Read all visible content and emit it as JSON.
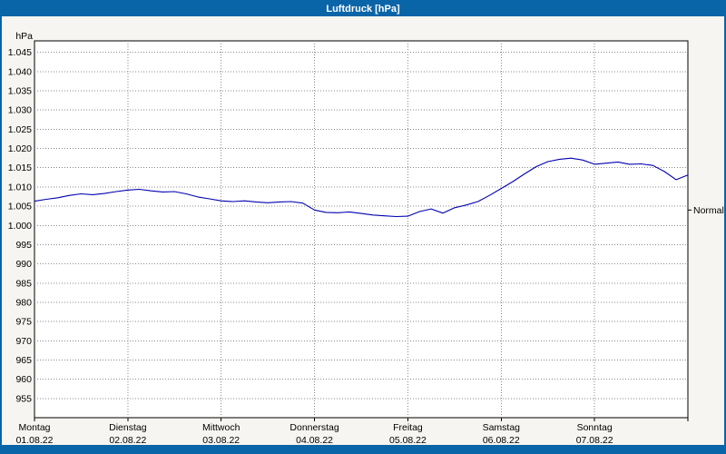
{
  "window": {
    "title": "Luftdruck [hPa]"
  },
  "colors": {
    "titlebar": "#0a64a8",
    "border": "#0a64a8",
    "background": "#f6f5f1",
    "plot_bg": "#ffffff",
    "grid": "#8a8a8a",
    "line": "#0000b0"
  },
  "chart_data": {
    "type": "line",
    "title": "Luftdruck [hPa]",
    "ylabel": "hPa",
    "series_name": "Luftdruck",
    "ylim": [
      950,
      1048
    ],
    "x_range": [
      0,
      7
    ],
    "x_unit": "days",
    "grid": "dotted",
    "legend": "none",
    "y_tick_values": [
      1045,
      1040,
      1035,
      1030,
      1025,
      1020,
      1015,
      1010,
      1005,
      1000,
      995,
      990,
      985,
      980,
      975,
      970,
      965,
      960,
      955
    ],
    "y_tick_labels": [
      "1.045",
      "1.040",
      "1.035",
      "1.030",
      "1.025",
      "1.020",
      "1.015",
      "1.010",
      "1.005",
      "1.000",
      "995",
      "990",
      "985",
      "980",
      "975",
      "970",
      "965",
      "960",
      "955"
    ],
    "x_tick_labels": [
      {
        "weekday": "Montag",
        "date": "01.08.22"
      },
      {
        "weekday": "Dienstag",
        "date": "02.08.22"
      },
      {
        "weekday": "Mittwoch",
        "date": "03.08.22"
      },
      {
        "weekday": "Donnerstag",
        "date": "04.08.22"
      },
      {
        "weekday": "Freitag",
        "date": "05.08.22"
      },
      {
        "weekday": "Samstag",
        "date": "06.08.22"
      },
      {
        "weekday": "Sonntag",
        "date": "07.08.22"
      }
    ],
    "normal": {
      "label": "Normal",
      "value": 1004
    },
    "x_days": [
      0,
      0.125,
      0.25,
      0.375,
      0.5,
      0.625,
      0.75,
      0.875,
      1,
      1.125,
      1.25,
      1.375,
      1.5,
      1.625,
      1.75,
      1.875,
      2,
      2.125,
      2.25,
      2.375,
      2.5,
      2.625,
      2.75,
      2.875,
      3,
      3.125,
      3.25,
      3.375,
      3.5,
      3.625,
      3.75,
      3.875,
      4,
      4.125,
      4.25,
      4.375,
      4.5,
      4.625,
      4.75,
      4.875,
      5,
      5.125,
      5.25,
      5.375,
      5.5,
      5.625,
      5.75,
      5.875,
      6,
      6.125,
      6.25,
      6.375,
      6.5,
      6.625,
      6.75,
      6.875,
      7
    ],
    "values": [
      1006.3,
      1006.8,
      1007.2,
      1007.8,
      1008.2,
      1008.0,
      1008.3,
      1008.8,
      1009.2,
      1009.4,
      1009.0,
      1008.7,
      1008.8,
      1008.2,
      1007.4,
      1006.9,
      1006.4,
      1006.2,
      1006.4,
      1006.1,
      1005.9,
      1006.1,
      1006.2,
      1005.8,
      1004.0,
      1003.4,
      1003.3,
      1003.5,
      1003.1,
      1002.7,
      1002.5,
      1002.3,
      1002.4,
      1003.6,
      1004.3,
      1003.2,
      1004.6,
      1005.3,
      1006.2,
      1007.8,
      1009.6,
      1011.4,
      1013.4,
      1015.3,
      1016.6,
      1017.2,
      1017.5,
      1017.0,
      1015.9,
      1016.2,
      1016.5,
      1015.9,
      1016.0,
      1015.6,
      1014.0,
      1011.9,
      1013.1
    ]
  }
}
